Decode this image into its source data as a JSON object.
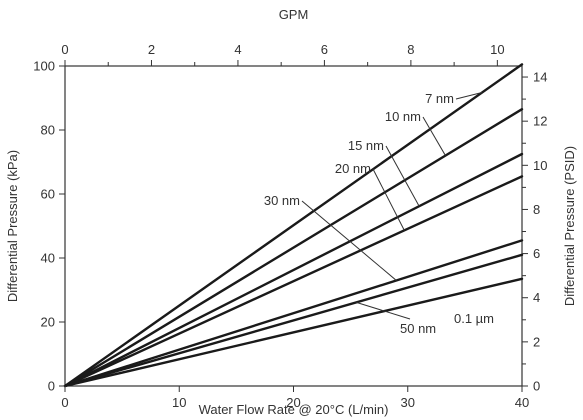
{
  "chart_data": {
    "type": "line",
    "xlabel": "Water Flow Rate @ 20°C (L/min)",
    "ylabel": "Differential Pressure (kPa)",
    "x2label": "GPM",
    "y2label": "Differential Pressure (PSID)",
    "xlim": [
      0,
      40
    ],
    "ylim": [
      0,
      100
    ],
    "x2lim": [
      0,
      10.57
    ],
    "y2lim": [
      0,
      14.5
    ],
    "xticks": [
      0,
      10,
      20,
      30,
      40
    ],
    "yticks": [
      0,
      20,
      40,
      60,
      80,
      100
    ],
    "x2ticks": [
      0,
      2,
      4,
      6,
      8,
      10
    ],
    "y2ticks": [
      0,
      2,
      4,
      6,
      8,
      10,
      12,
      14
    ],
    "grid": false,
    "line_color": "#1a1a1a",
    "series": [
      {
        "name": "7 nm",
        "x": [
          0,
          40
        ],
        "y": [
          0,
          100.5
        ]
      },
      {
        "name": "10 nm",
        "x": [
          0,
          40
        ],
        "y": [
          0,
          86.5
        ]
      },
      {
        "name": "15 nm",
        "x": [
          0,
          40
        ],
        "y": [
          0,
          72.5
        ]
      },
      {
        "name": "20 nm",
        "x": [
          0,
          40
        ],
        "y": [
          0,
          65.5
        ]
      },
      {
        "name": "30 nm",
        "x": [
          0,
          40
        ],
        "y": [
          0,
          45.5
        ]
      },
      {
        "name": "50 nm",
        "x": [
          0,
          40
        ],
        "y": [
          0,
          41
        ]
      },
      {
        "name": "0.1 µm",
        "x": [
          0,
          40
        ],
        "y": [
          0,
          33.5
        ]
      }
    ]
  }
}
